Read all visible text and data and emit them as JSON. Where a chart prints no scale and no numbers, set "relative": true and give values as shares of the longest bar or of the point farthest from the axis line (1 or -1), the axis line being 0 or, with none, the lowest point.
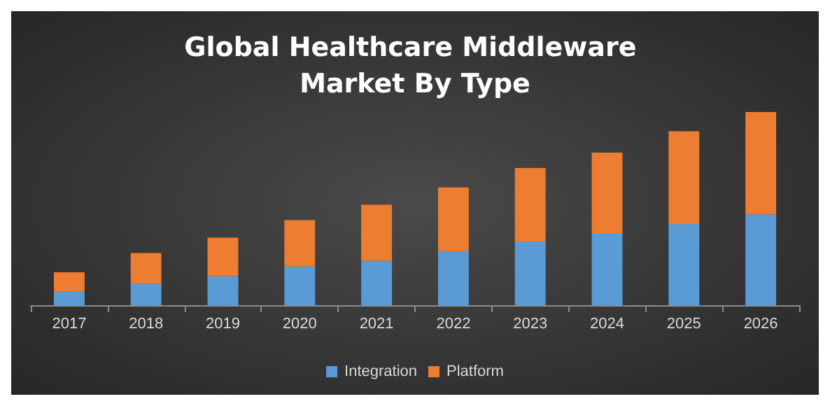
{
  "chart_data": {
    "type": "bar",
    "title": "Global Healthcare Middleware Market By Type",
    "categories": [
      "2017",
      "2018",
      "2019",
      "2020",
      "2021",
      "2022",
      "2023",
      "2024",
      "2025",
      "2026"
    ],
    "series": [
      {
        "name": "Integration",
        "color": "#5b9bd5",
        "values": [
          0.07,
          0.11,
          0.15,
          0.2,
          0.23,
          0.28,
          0.33,
          0.37,
          0.42,
          0.47
        ]
      },
      {
        "name": "Platform",
        "color": "#ed7d31",
        "values": [
          0.1,
          0.16,
          0.2,
          0.24,
          0.29,
          0.33,
          0.38,
          0.42,
          0.48,
          0.53
        ]
      }
    ],
    "stacked": true,
    "relative": true,
    "legend": "bottom",
    "grid": false
  }
}
